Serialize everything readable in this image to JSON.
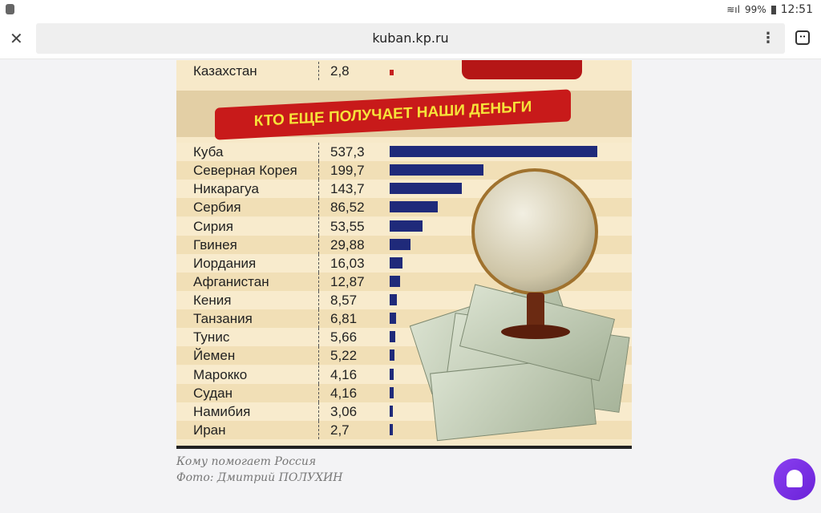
{
  "status_bar": {
    "battery": "99%",
    "time": "12:51"
  },
  "browser": {
    "url": "kuban.kp.ru",
    "close_icon": "✕",
    "menu_icon": "⋮",
    "tabs_icon": "••"
  },
  "infographic": {
    "previous_row": {
      "country": "Казахстан",
      "value": "2,8"
    },
    "banner": "КТО ЕЩЕ ПОЛУЧАЕТ НАШИ ДЕНЬГИ",
    "rows": [
      {
        "country": "Куба",
        "value": "537,3",
        "num": 537.3
      },
      {
        "country": "Северная Корея",
        "value": "199,7",
        "num": 199.7
      },
      {
        "country": "Никарагуа",
        "value": "143,7",
        "num": 143.7
      },
      {
        "country": "Сербия",
        "value": "86,52",
        "num": 86.52
      },
      {
        "country": "Сирия",
        "value": "53,55",
        "num": 53.55
      },
      {
        "country": "Гвинея",
        "value": "29,88",
        "num": 29.88
      },
      {
        "country": "Иордания",
        "value": "16,03",
        "num": 16.03
      },
      {
        "country": "Афганистан",
        "value": "12,87",
        "num": 12.87
      },
      {
        "country": "Кения",
        "value": "8,57",
        "num": 8.57
      },
      {
        "country": "Танзания",
        "value": "6,81",
        "num": 6.81
      },
      {
        "country": "Тунис",
        "value": "5,66",
        "num": 5.66
      },
      {
        "country": "Йемен",
        "value": "5,22",
        "num": 5.22
      },
      {
        "country": "Марокко",
        "value": "4,16",
        "num": 4.16
      },
      {
        "country": "Судан",
        "value": "4,16",
        "num": 4.16
      },
      {
        "country": "Намибия",
        "value": "3,06",
        "num": 3.06
      },
      {
        "country": "Иран",
        "value": "2,7",
        "num": 2.7
      }
    ],
    "colors": {
      "bar": "#1f2a7a",
      "banner": "#c81a1a",
      "banner_text": "#f6e23a"
    }
  },
  "caption": {
    "line1": "Кому помогает Россия",
    "line2": "Фото: Дмитрий ПОЛУХИН"
  }
}
